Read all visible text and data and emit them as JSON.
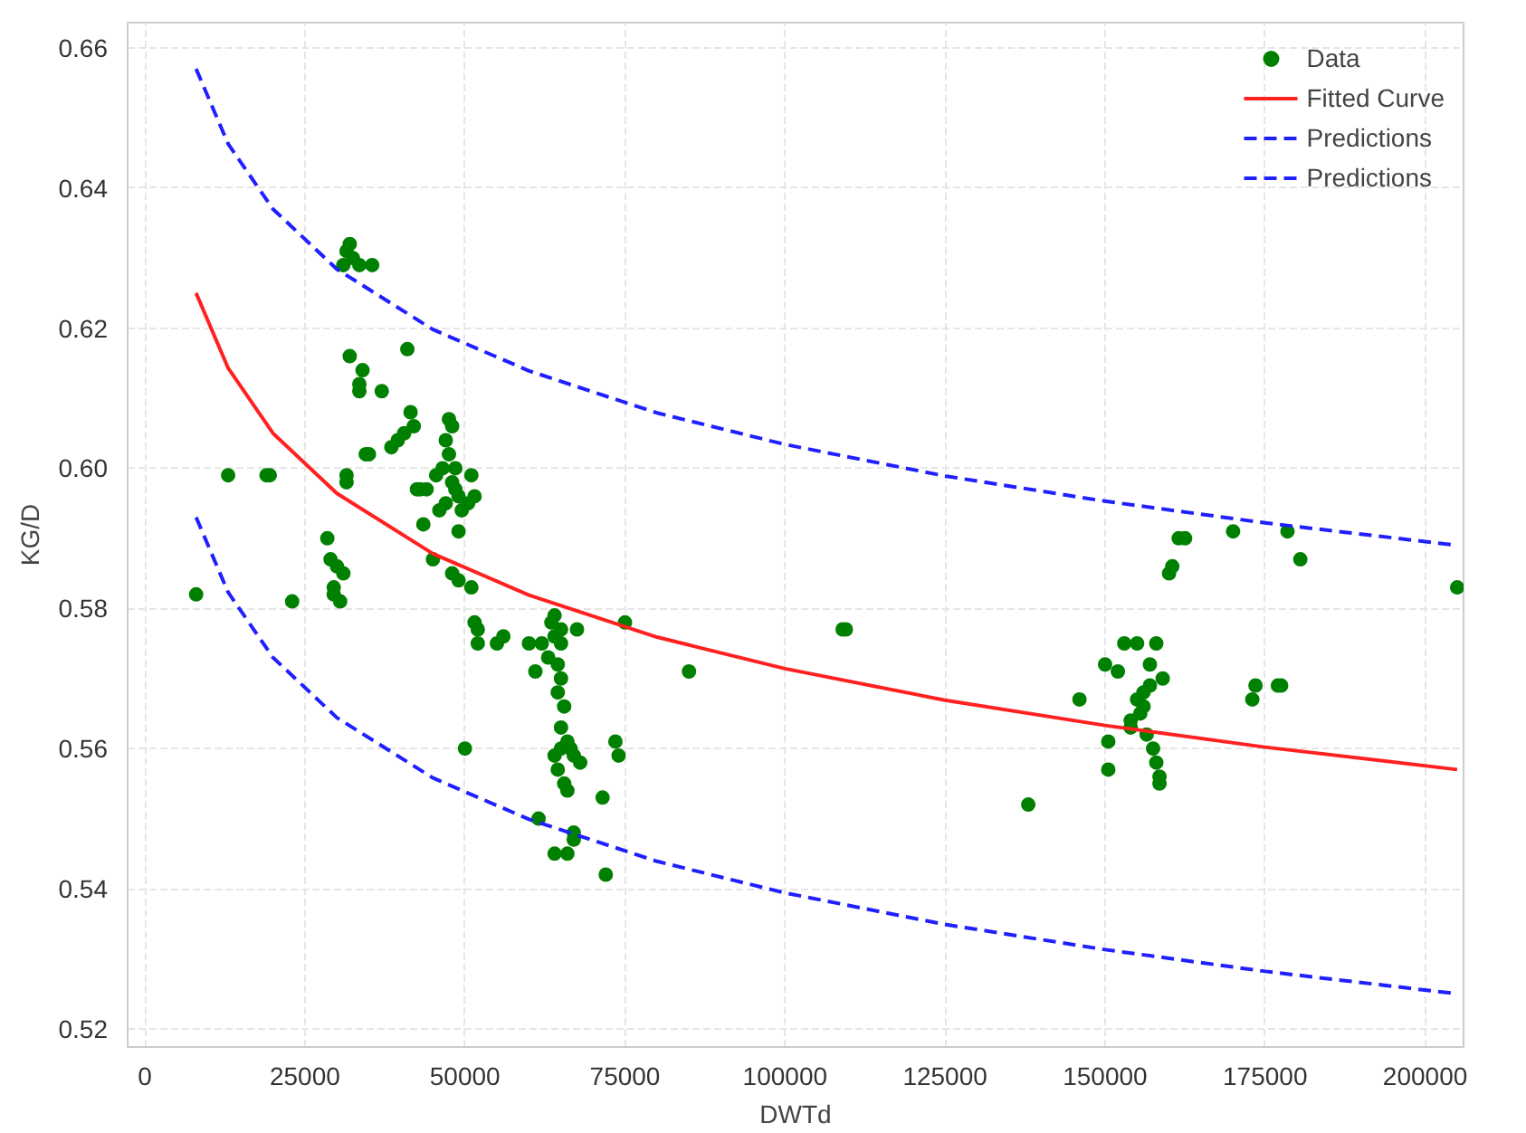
{
  "chart_data": {
    "type": "scatter",
    "xlabel": "DWTd",
    "ylabel": "KG/D",
    "xlim": [
      -2700,
      206000
    ],
    "ylim": [
      0.5174,
      0.6636
    ],
    "xticks": [
      0,
      25000,
      50000,
      75000,
      100000,
      125000,
      150000,
      175000,
      200000
    ],
    "yticks": [
      0.52,
      0.54,
      0.56,
      0.58,
      {
        "value": 0.6,
        "label": "0.60"
      },
      0.62,
      0.64,
      0.66
    ],
    "grid": true,
    "legend": "top right",
    "series": [
      {
        "name": "Data",
        "marker": "circle",
        "color": "#008000",
        "x": [
          8000,
          13000,
          19000,
          19500,
          23000,
          28500,
          29000,
          29500,
          29500,
          30000,
          30500,
          31000,
          31500,
          31500,
          31000,
          31500,
          32000,
          32500,
          33500,
          35500,
          32000,
          33500,
          33500,
          34000,
          34500,
          35000,
          37000,
          38500,
          39500,
          40500,
          41000,
          41500,
          42000,
          42500,
          43000,
          43500,
          44000,
          45000,
          45500,
          46000,
          46500,
          47000,
          47000,
          47500,
          47500,
          48000,
          48000,
          48500,
          48500,
          49000,
          49000,
          49500,
          48000,
          49000,
          50000,
          50500,
          51000,
          51000,
          51500,
          51500,
          52000,
          52000,
          55000,
          56000,
          60000,
          61000,
          61500,
          62000,
          63000,
          63500,
          64000,
          64000,
          64500,
          64500,
          65000,
          65000,
          65000,
          65500,
          65000,
          65000,
          64000,
          64500,
          66000,
          66500,
          67000,
          65500,
          66000,
          67000,
          67000,
          64000,
          66000,
          67500,
          68000,
          71500,
          72000,
          73500,
          74000,
          75000,
          85000,
          109000,
          109500,
          138000,
          146000,
          150000,
          150500,
          150500,
          152000,
          153000,
          154000,
          154000,
          155000,
          155000,
          155500,
          156000,
          156000,
          156500,
          157000,
          157000,
          157500,
          158000,
          158500,
          158500,
          158000,
          159000,
          160000,
          160500,
          161500,
          162500,
          170000,
          173000,
          173500,
          177000,
          177500,
          178500,
          180500,
          205000
        ],
        "values": [
          0.582,
          0.599,
          0.599,
          0.599,
          0.581,
          0.59,
          0.587,
          0.583,
          0.582,
          0.586,
          0.581,
          0.585,
          0.599,
          0.598,
          0.629,
          0.631,
          0.632,
          0.63,
          0.629,
          0.629,
          0.616,
          0.612,
          0.611,
          0.614,
          0.602,
          0.602,
          0.611,
          0.603,
          0.604,
          0.605,
          0.617,
          0.608,
          0.606,
          0.597,
          0.597,
          0.592,
          0.597,
          0.587,
          0.599,
          0.594,
          0.6,
          0.595,
          0.604,
          0.607,
          0.602,
          0.606,
          0.598,
          0.6,
          0.597,
          0.596,
          0.591,
          0.594,
          0.585,
          0.584,
          0.56,
          0.595,
          0.599,
          0.583,
          0.596,
          0.578,
          0.577,
          0.575,
          0.575,
          0.576,
          0.575,
          0.571,
          0.55,
          0.575,
          0.573,
          0.578,
          0.579,
          0.576,
          0.572,
          0.568,
          0.577,
          0.575,
          0.57,
          0.566,
          0.563,
          0.56,
          0.559,
          0.557,
          0.561,
          0.56,
          0.559,
          0.555,
          0.554,
          0.547,
          0.548,
          0.545,
          0.545,
          0.577,
          0.558,
          0.553,
          0.542,
          0.561,
          0.559,
          0.578,
          0.571,
          0.577,
          0.577,
          0.552,
          0.567,
          0.572,
          0.561,
          0.557,
          0.571,
          0.575,
          0.563,
          0.564,
          0.575,
          0.567,
          0.565,
          0.566,
          0.568,
          0.562,
          0.569,
          0.572,
          0.56,
          0.558,
          0.555,
          0.556,
          0.575,
          0.57,
          0.585,
          0.586,
          0.59,
          0.59,
          0.591,
          0.567,
          0.569,
          0.569,
          0.569,
          0.591,
          0.587,
          0.583
        ]
      },
      {
        "name": "Fitted Curve",
        "type": "line",
        "line_style": "solid",
        "color": "#ff2020",
        "x": [
          8000,
          13000,
          20000,
          30000,
          45000,
          60000,
          80000,
          100000,
          125000,
          150000,
          175000,
          205000
        ],
        "values": [
          0.625,
          0.6143,
          0.605,
          0.5964,
          0.5878,
          0.5819,
          0.5759,
          0.5714,
          0.5669,
          0.5633,
          0.5602,
          0.557
        ]
      },
      {
        "name": "Predictions",
        "type": "line",
        "line_style": "dashed",
        "color": "#2020ff",
        "x": [
          8000,
          13000,
          20000,
          30000,
          45000,
          60000,
          80000,
          100000,
          125000,
          150000,
          175000,
          205000
        ],
        "values": [
          0.657,
          0.6463,
          0.637,
          0.6284,
          0.6198,
          0.6139,
          0.6079,
          0.6034,
          0.5989,
          0.5953,
          0.5922,
          0.589
        ]
      },
      {
        "name": "Predictions",
        "type": "line",
        "line_style": "dashed",
        "color": "#2020ff",
        "x": [
          8000,
          13000,
          20000,
          30000,
          45000,
          60000,
          80000,
          100000,
          125000,
          150000,
          175000,
          205000
        ],
        "values": [
          0.593,
          0.5823,
          0.573,
          0.5644,
          0.5558,
          0.5499,
          0.5439,
          0.5394,
          0.5349,
          0.5313,
          0.5282,
          0.525
        ]
      }
    ]
  }
}
